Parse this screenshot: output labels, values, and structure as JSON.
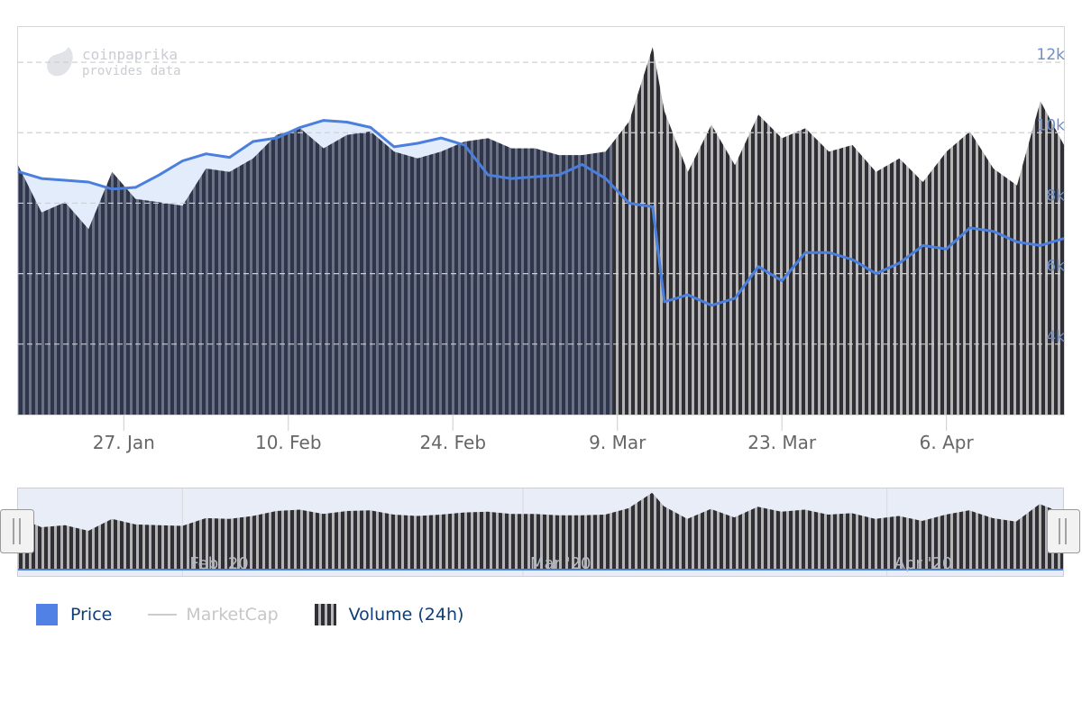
{
  "watermark": {
    "brand": "coinpaprika",
    "tagline": "provides data"
  },
  "chart_data": {
    "type": "line",
    "x_axis": {
      "type": "date",
      "range": [
        "2020-01-18",
        "2020-04-16"
      ],
      "tick_labels": [
        "27. Jan",
        "10. Feb",
        "24. Feb",
        "9. Mar",
        "23. Mar",
        "6. Apr"
      ],
      "tick_dates": [
        "2020-01-27",
        "2020-02-10",
        "2020-02-24",
        "2020-03-09",
        "2020-03-23",
        "2020-04-06"
      ]
    },
    "y_axis": {
      "tick_labels": [
        "4k",
        "6k",
        "8k",
        "10k",
        "12k"
      ],
      "tick_values": [
        4000,
        6000,
        8000,
        10000,
        12000
      ],
      "range": [
        2000,
        13000
      ],
      "grid": true
    },
    "series": [
      {
        "name": "Price",
        "color": "#4a7fdd",
        "area_fill": "#e3ecfa",
        "x": [
          "2020-01-18",
          "2020-01-20",
          "2020-01-22",
          "2020-01-24",
          "2020-01-26",
          "2020-01-28",
          "2020-01-30",
          "2020-02-01",
          "2020-02-03",
          "2020-02-05",
          "2020-02-07",
          "2020-02-09",
          "2020-02-11",
          "2020-02-13",
          "2020-02-15",
          "2020-02-17",
          "2020-02-19",
          "2020-02-21",
          "2020-02-23",
          "2020-02-25",
          "2020-02-27",
          "2020-02-29",
          "2020-03-02",
          "2020-03-04",
          "2020-03-06",
          "2020-03-08",
          "2020-03-10",
          "2020-03-12",
          "2020-03-13",
          "2020-03-15",
          "2020-03-17",
          "2020-03-19",
          "2020-03-21",
          "2020-03-23",
          "2020-03-25",
          "2020-03-27",
          "2020-03-29",
          "2020-03-31",
          "2020-04-02",
          "2020-04-04",
          "2020-04-06",
          "2020-04-08",
          "2020-04-10",
          "2020-04-12",
          "2020-04-14",
          "2020-04-16"
        ],
        "values": [
          8900,
          8700,
          8650,
          8600,
          8400,
          8450,
          8800,
          9200,
          9400,
          9300,
          9750,
          9850,
          10150,
          10350,
          10300,
          10150,
          9600,
          9700,
          9850,
          9650,
          8800,
          8700,
          8750,
          8800,
          9100,
          8700,
          8000,
          7900,
          5200,
          5400,
          5100,
          5300,
          6200,
          5800,
          6600,
          6600,
          6400,
          6000,
          6300,
          6800,
          6700,
          7300,
          7200,
          6900,
          6800,
          7000
        ]
      },
      {
        "name": "MarketCap",
        "color": "#cccccc",
        "hidden": true,
        "values": []
      },
      {
        "name": "Volume (24h)",
        "color": "#2f2f35",
        "axis": "secondary",
        "x": [
          "2020-01-18",
          "2020-01-20",
          "2020-01-22",
          "2020-01-24",
          "2020-01-26",
          "2020-01-28",
          "2020-01-30",
          "2020-02-01",
          "2020-02-03",
          "2020-02-05",
          "2020-02-07",
          "2020-02-09",
          "2020-02-11",
          "2020-02-13",
          "2020-02-15",
          "2020-02-17",
          "2020-02-19",
          "2020-02-21",
          "2020-02-23",
          "2020-02-25",
          "2020-02-27",
          "2020-02-29",
          "2020-03-02",
          "2020-03-04",
          "2020-03-06",
          "2020-03-08",
          "2020-03-10",
          "2020-03-12",
          "2020-03-13",
          "2020-03-15",
          "2020-03-17",
          "2020-03-19",
          "2020-03-21",
          "2020-03-23",
          "2020-03-25",
          "2020-03-27",
          "2020-03-29",
          "2020-03-31",
          "2020-04-02",
          "2020-04-04",
          "2020-04-06",
          "2020-04-08",
          "2020-04-10",
          "2020-04-12",
          "2020-04-14",
          "2020-04-16"
        ],
        "values": [
          7400,
          6000,
          6300,
          5500,
          7200,
          6400,
          6300,
          6200,
          7300,
          7200,
          7600,
          8300,
          8500,
          7900,
          8300,
          8400,
          7800,
          7600,
          7800,
          8100,
          8200,
          7900,
          7900,
          7700,
          7700,
          7800,
          8700,
          10900,
          9000,
          7200,
          8600,
          7400,
          8900,
          8200,
          8500,
          7800,
          8000,
          7200,
          7600,
          6900,
          7800,
          8400,
          7300,
          6800,
          9300,
          8000
        ],
        "bar_style": "striped"
      }
    ],
    "navigator": {
      "tick_labels": [
        "Feb '20",
        "Mar '20",
        "Apr '20"
      ],
      "tick_dates": [
        "2020-02-01",
        "2020-03-01",
        "2020-04-01"
      ]
    },
    "legend": {
      "placement": "bottom-left",
      "items": [
        {
          "label": "Price",
          "active": true
        },
        {
          "label": "MarketCap",
          "active": false
        },
        {
          "label": "Volume (24h)",
          "active": true
        }
      ]
    }
  }
}
